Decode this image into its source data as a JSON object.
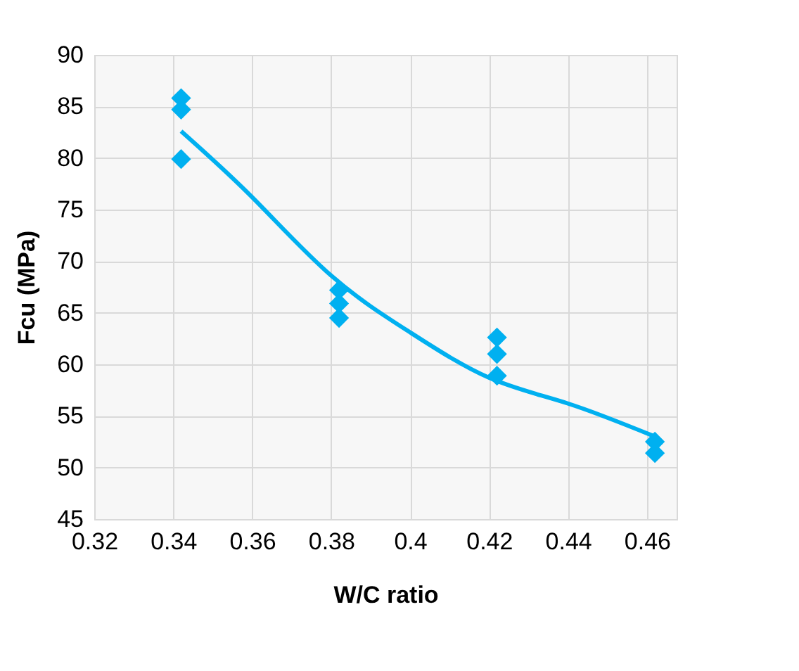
{
  "chart_data": {
    "type": "scatter",
    "xlabel": "W/C ratio",
    "ylabel": "Fcu (MPa)",
    "xlim": [
      0.32,
      0.4675
    ],
    "xticks": [
      0.32,
      0.34,
      0.36,
      0.38,
      0.4,
      0.42,
      0.44,
      0.46
    ],
    "ylim": [
      45,
      90
    ],
    "yticks": [
      45,
      50,
      55,
      60,
      65,
      70,
      75,
      80,
      85,
      90
    ],
    "grid": true,
    "marker": "diamond",
    "series": [
      {
        "color": "#00b0f0",
        "x": [
          0.342,
          0.342,
          0.342,
          0.382,
          0.382,
          0.382,
          0.422,
          0.422,
          0.422,
          0.462,
          0.462
        ],
        "values": [
          85.8,
          84.7,
          79.9,
          67.2,
          65.9,
          64.5,
          62.6,
          61.0,
          58.9,
          52.5,
          51.4
        ]
      },
      {
        "type": "line",
        "color": "#00b0f0",
        "marker": "none",
        "x": [
          0.342,
          0.36,
          0.38,
          0.4,
          0.42,
          0.44,
          0.462
        ],
        "values": [
          82.6,
          76.2,
          68.6,
          63.1,
          58.7,
          56.2,
          53.0
        ]
      }
    ]
  }
}
